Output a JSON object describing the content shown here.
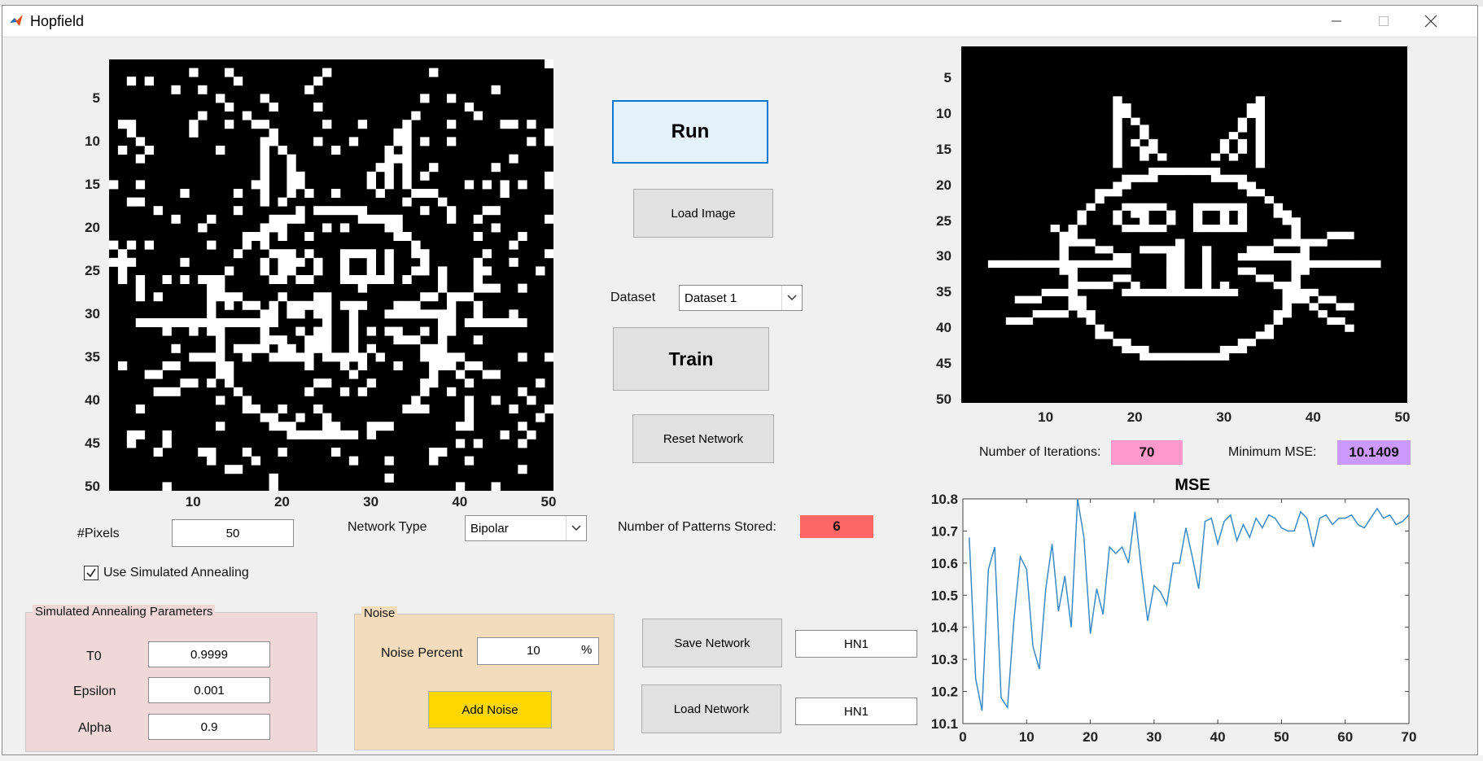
{
  "window": {
    "title": "Hopfield"
  },
  "colors": {
    "run_border": "#0078d7",
    "iterations_bg": "#ff99cc",
    "mse_bg": "#cc99ff",
    "patterns_bg": "#ff6666",
    "sa_panel_bg": "#f0d8d8",
    "noise_panel_bg": "#f3dcbc",
    "add_noise_bg": "#ffd700",
    "line_color": "#3a8ac6"
  },
  "noisy_plot": {
    "x_ticks": [
      "10",
      "20",
      "30",
      "40",
      "50"
    ],
    "y_ticks": [
      "5",
      "10",
      "15",
      "20",
      "25",
      "30",
      "35",
      "40",
      "45",
      "50"
    ]
  },
  "clean_plot": {
    "x_ticks": [
      "10",
      "20",
      "30",
      "40",
      "50"
    ],
    "y_ticks": [
      "5",
      "10",
      "15",
      "20",
      "25",
      "30",
      "35",
      "40",
      "45",
      "50"
    ]
  },
  "controls": {
    "pixels_label": "#Pixels",
    "pixels_value": "50",
    "network_type_label": "Network Type",
    "network_type_value": "Bipolar",
    "use_sa_label": "Use Simulated Annealing",
    "use_sa_checked": true,
    "run_label": "Run",
    "load_image_label": "Load Image",
    "dataset_label": "Dataset",
    "dataset_value": "Dataset 1",
    "train_label": "Train",
    "reset_label": "Reset Network",
    "patterns_label": "Number of Patterns Stored:",
    "patterns_value": "6",
    "save_network_label": "Save Network",
    "save_network_name": "HN1",
    "load_network_label": "Load Network",
    "load_network_name": "HN1"
  },
  "sa_panel": {
    "title": "Simulated Annealing Parameters",
    "t0_label": "T0",
    "t0_value": "0.9999",
    "epsilon_label": "Epsilon",
    "epsilon_value": "0.001",
    "alpha_label": "Alpha",
    "alpha_value": "0.9"
  },
  "noise_panel": {
    "title": "Noise",
    "percent_label": "Noise Percent",
    "percent_value": "10",
    "percent_unit": "%",
    "add_noise_label": "Add Noise"
  },
  "stats": {
    "iterations_label": "Number of Iterations:",
    "iterations_value": "70",
    "min_mse_label": "Minimum MSE:",
    "min_mse_value": "10.1409"
  },
  "chart_data": {
    "type": "line",
    "title": "MSE",
    "xlabel": "",
    "ylabel": "",
    "xlim": [
      0,
      70
    ],
    "ylim": [
      10.1,
      10.8
    ],
    "x_ticks": [
      0,
      10,
      20,
      30,
      40,
      50,
      60,
      70
    ],
    "y_ticks": [
      10.1,
      10.2,
      10.3,
      10.4,
      10.5,
      10.6,
      10.7,
      10.8
    ],
    "grid": false,
    "series": [
      {
        "name": "",
        "x": [
          1,
          2,
          3,
          4,
          5,
          6,
          7,
          8,
          9,
          10,
          11,
          12,
          13,
          14,
          15,
          16,
          17,
          18,
          19,
          20,
          21,
          22,
          23,
          24,
          25,
          26,
          27,
          28,
          29,
          30,
          31,
          32,
          33,
          34,
          35,
          36,
          37,
          38,
          39,
          40,
          41,
          42,
          43,
          44,
          45,
          46,
          47,
          48,
          49,
          50,
          51,
          52,
          53,
          54,
          55,
          56,
          57,
          58,
          59,
          60,
          61,
          62,
          63,
          64,
          65,
          66,
          67,
          68,
          69,
          70
        ],
        "values": [
          10.68,
          10.24,
          10.14,
          10.58,
          10.65,
          10.18,
          10.15,
          10.42,
          10.62,
          10.58,
          10.34,
          10.27,
          10.52,
          10.66,
          10.45,
          10.56,
          10.4,
          10.8,
          10.68,
          10.38,
          10.52,
          10.44,
          10.65,
          10.63,
          10.65,
          10.6,
          10.76,
          10.58,
          10.42,
          10.53,
          10.51,
          10.47,
          10.6,
          10.6,
          10.71,
          10.62,
          10.52,
          10.73,
          10.74,
          10.66,
          10.73,
          10.75,
          10.67,
          10.72,
          10.68,
          10.74,
          10.71,
          10.75,
          10.74,
          10.71,
          10.7,
          10.7,
          10.76,
          10.74,
          10.65,
          10.74,
          10.75,
          10.72,
          10.74,
          10.74,
          10.75,
          10.72,
          10.71,
          10.74,
          10.77,
          10.74,
          10.75,
          10.72,
          10.73,
          10.75
        ]
      }
    ]
  }
}
